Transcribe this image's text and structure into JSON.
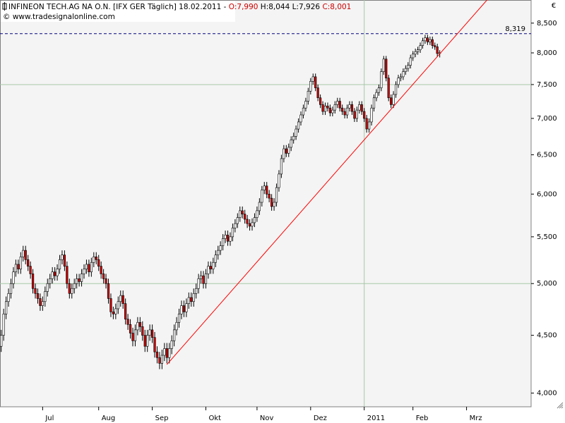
{
  "chart_data": {
    "type": "candlestick",
    "title": "INFINEON TECH.AG NA O.N. [IFX GER  Täglich] 18.02.2011 -",
    "quote": {
      "open": "O:7,990",
      "high": "H:8,044",
      "low": "L:7,926",
      "close": "C:8,001"
    },
    "watermark": "© www.tradesignalonline.com",
    "currency": "€",
    "log_scale": true,
    "up_color": "#ffffff",
    "down_color": "#cc0000",
    "ylim": [
      3.89,
      8.91
    ],
    "yticks": [
      {
        "value": 4,
        "label": "4,000"
      },
      {
        "value": 4.5,
        "label": "4,500"
      },
      {
        "value": 5,
        "label": "5,000"
      },
      {
        "value": 5.5,
        "label": "5,500"
      },
      {
        "value": 6,
        "label": "6,000"
      },
      {
        "value": 6.5,
        "label": "6,500"
      },
      {
        "value": 7,
        "label": "7,000"
      },
      {
        "value": 7.5,
        "label": "7,500"
      },
      {
        "value": 8,
        "label": "8,000"
      },
      {
        "value": 8.5,
        "label": "8,500"
      }
    ],
    "grid_y": [
      5,
      7.5
    ],
    "grid_x": [
      149
    ],
    "hline": {
      "value": 8.319,
      "label": "8,319",
      "color": "#000080"
    },
    "trendline": {
      "x": [
        68,
        199.4
      ],
      "y": [
        4.24,
        8.91
      ],
      "color": "#ff0000"
    },
    "categories": [
      null,
      null,
      null,
      null,
      null,
      null,
      null,
      null,
      null,
      null,
      null,
      null,
      null,
      null,
      null,
      null,
      null,
      "Jul",
      null,
      null,
      null,
      null,
      null,
      null,
      null,
      null,
      null,
      null,
      null,
      null,
      null,
      null,
      null,
      null,
      null,
      null,
      null,
      null,
      null,
      null,
      "Aug",
      null,
      null,
      null,
      null,
      null,
      null,
      null,
      null,
      null,
      null,
      null,
      null,
      null,
      null,
      null,
      null,
      null,
      null,
      null,
      null,
      null,
      "Sep",
      null,
      null,
      null,
      null,
      null,
      null,
      null,
      null,
      null,
      null,
      null,
      null,
      null,
      null,
      null,
      null,
      null,
      null,
      null,
      null,
      null,
      "Okt",
      null,
      null,
      null,
      null,
      null,
      null,
      null,
      null,
      null,
      null,
      null,
      null,
      null,
      null,
      null,
      null,
      null,
      null,
      null,
      null,
      "Nov",
      null,
      null,
      null,
      null,
      null,
      null,
      null,
      null,
      null,
      null,
      null,
      null,
      null,
      null,
      null,
      null,
      null,
      null,
      null,
      null,
      null,
      "Dez",
      null,
      null,
      null,
      null,
      null,
      null,
      null,
      null,
      null,
      null,
      null,
      null,
      null,
      null,
      null,
      null,
      null,
      null,
      null,
      null,
      null,
      "2011",
      null,
      null,
      null,
      null,
      null,
      null,
      null,
      null,
      null,
      null,
      null,
      null,
      null,
      null,
      null,
      null,
      null,
      null,
      null,
      "Feb",
      null,
      null,
      null,
      null,
      null,
      null,
      null,
      null,
      null,
      null,
      null,
      null,
      null,
      null,
      null,
      null,
      null,
      null,
      null,
      null,
      null,
      "Mrz",
      null,
      null,
      null,
      null,
      null,
      null,
      null,
      null,
      null,
      null,
      null,
      null,
      null,
      null,
      null,
      null,
      null,
      null,
      null,
      null,
      null,
      null,
      null,
      null,
      null,
      null
    ],
    "open": [
      4.4,
      4.5,
      4.7,
      4.82,
      4.9,
      5.0,
      5.12,
      5.2,
      5.15,
      5.28,
      5.35,
      5.25,
      5.18,
      5.1,
      4.95,
      4.9,
      4.85,
      4.78,
      4.82,
      4.92,
      5.0,
      5.05,
      5.12,
      5.08,
      5.15,
      5.25,
      5.3,
      5.18,
      5.0,
      4.9,
      4.95,
      5.0,
      5.05,
      5.02,
      5.1,
      5.15,
      5.2,
      5.12,
      5.22,
      5.28,
      5.25,
      5.18,
      5.1,
      5.05,
      5.0,
      4.85,
      4.72,
      4.7,
      4.75,
      4.82,
      4.88,
      4.8,
      4.65,
      4.6,
      4.52,
      4.45,
      4.55,
      4.62,
      4.58,
      4.5,
      4.4,
      4.5,
      4.55,
      4.48,
      4.35,
      4.3,
      4.25,
      4.32,
      4.38,
      4.3,
      4.38,
      4.45,
      4.55,
      4.62,
      4.7,
      4.78,
      4.72,
      4.8,
      4.86,
      4.82,
      4.9,
      4.95,
      5.05,
      5.08,
      5.0,
      5.1,
      5.18,
      5.15,
      5.22,
      5.3,
      5.35,
      5.4,
      5.48,
      5.52,
      5.45,
      5.5,
      5.6,
      5.65,
      5.72,
      5.8,
      5.76,
      5.7,
      5.65,
      5.62,
      5.66,
      5.72,
      5.8,
      5.9,
      6.05,
      6.1,
      6.0,
      5.95,
      5.85,
      5.9,
      6.08,
      6.25,
      6.45,
      6.58,
      6.52,
      6.6,
      6.7,
      6.75,
      6.85,
      6.95,
      7.05,
      7.15,
      7.25,
      7.4,
      7.55,
      7.62,
      7.45,
      7.3,
      7.2,
      7.1,
      7.18,
      7.15,
      7.08,
      7.12,
      7.2,
      7.25,
      7.15,
      7.1,
      7.05,
      7.15,
      7.2,
      7.1,
      7.0,
      7.12,
      7.2,
      7.1,
      7.0,
      6.85,
      6.95,
      7.15,
      7.3,
      7.38,
      7.45,
      7.7,
      7.9,
      7.6,
      7.3,
      7.2,
      7.35,
      7.5,
      7.6,
      7.62,
      7.7,
      7.75,
      7.8,
      7.92,
      7.98,
      8.02,
      8.05,
      8.12,
      8.2,
      8.25,
      8.18,
      8.22,
      8.12,
      8.1,
      7.99,
      null,
      null,
      null,
      null,
      null,
      null,
      null,
      null,
      null,
      null,
      null,
      null,
      null,
      null,
      null,
      null,
      null,
      null,
      null,
      null,
      null,
      null,
      null,
      null,
      null,
      null,
      null,
      null,
      null,
      null,
      null,
      null,
      null,
      null,
      null,
      null,
      null
    ],
    "high": [
      4.55,
      4.75,
      4.87,
      4.95,
      5.05,
      5.17,
      5.25,
      5.25,
      5.33,
      5.4,
      5.4,
      5.3,
      5.23,
      5.15,
      5.0,
      4.95,
      4.9,
      4.87,
      4.97,
      5.05,
      5.1,
      5.17,
      5.17,
      5.2,
      5.3,
      5.35,
      5.35,
      5.23,
      5.05,
      5.0,
      5.05,
      5.1,
      5.1,
      5.15,
      5.2,
      5.25,
      5.25,
      5.27,
      5.33,
      5.33,
      5.3,
      5.23,
      5.15,
      5.1,
      5.05,
      4.9,
      4.77,
      4.8,
      4.87,
      4.93,
      4.93,
      4.85,
      4.7,
      4.65,
      4.57,
      4.6,
      4.67,
      4.67,
      4.63,
      4.55,
      4.55,
      4.6,
      4.6,
      4.53,
      4.4,
      4.35,
      4.37,
      4.43,
      4.43,
      4.43,
      4.5,
      4.6,
      4.67,
      4.75,
      4.83,
      4.83,
      4.85,
      4.91,
      4.91,
      4.95,
      5.0,
      5.1,
      5.13,
      5.13,
      5.15,
      5.23,
      5.23,
      5.27,
      5.35,
      5.4,
      5.45,
      5.53,
      5.57,
      5.57,
      5.55,
      5.65,
      5.7,
      5.77,
      5.85,
      5.85,
      5.81,
      5.75,
      5.7,
      5.71,
      5.77,
      5.85,
      5.95,
      6.1,
      6.15,
      6.15,
      6.05,
      6.0,
      5.95,
      6.13,
      6.3,
      6.5,
      6.63,
      6.63,
      6.65,
      6.75,
      6.8,
      6.9,
      7.0,
      7.1,
      7.2,
      7.3,
      7.45,
      7.6,
      7.67,
      7.67,
      7.5,
      7.35,
      7.25,
      7.23,
      7.23,
      7.2,
      7.17,
      7.25,
      7.3,
      7.3,
      7.2,
      7.15,
      7.2,
      7.25,
      7.25,
      7.15,
      7.17,
      7.25,
      7.25,
      7.15,
      7.05,
      7.0,
      7.2,
      7.35,
      7.43,
      7.5,
      7.75,
      7.95,
      7.95,
      7.65,
      7.35,
      7.4,
      7.55,
      7.65,
      7.67,
      7.75,
      7.8,
      7.85,
      7.97,
      8.03,
      8.07,
      8.1,
      8.17,
      8.25,
      8.3,
      8.3,
      8.27,
      8.27,
      8.17,
      8.15,
      8.044,
      null,
      null,
      null,
      null,
      null,
      null,
      null,
      null,
      null,
      null,
      null,
      null,
      null,
      null,
      null,
      null,
      null,
      null,
      null,
      null,
      null,
      null,
      null,
      null,
      null,
      null,
      null,
      null,
      null,
      null,
      null,
      null,
      null,
      null,
      null,
      null,
      null
    ],
    "low": [
      4.35,
      4.45,
      4.65,
      4.77,
      4.85,
      4.95,
      5.07,
      5.1,
      5.1,
      5.23,
      5.2,
      5.13,
      5.05,
      4.9,
      4.85,
      4.8,
      4.73,
      4.73,
      4.77,
      4.87,
      4.95,
      5.0,
      5.03,
      5.03,
      5.1,
      5.2,
      5.13,
      4.95,
      4.85,
      4.85,
      4.9,
      4.95,
      4.97,
      4.97,
      5.05,
      5.1,
      5.07,
      5.07,
      5.17,
      5.2,
      5.13,
      5.05,
      5.0,
      4.95,
      4.8,
      4.67,
      4.65,
      4.65,
      4.7,
      4.77,
      4.75,
      4.6,
      4.55,
      4.47,
      4.4,
      4.4,
      4.5,
      4.53,
      4.45,
      4.35,
      4.35,
      4.45,
      4.43,
      4.3,
      4.25,
      4.2,
      4.2,
      4.27,
      4.25,
      4.25,
      4.33,
      4.4,
      4.5,
      4.57,
      4.65,
      4.67,
      4.67,
      4.75,
      4.77,
      4.77,
      4.85,
      4.9,
      5.0,
      4.95,
      4.95,
      5.05,
      5.1,
      5.1,
      5.17,
      5.25,
      5.3,
      5.35,
      5.43,
      5.4,
      5.4,
      5.45,
      5.55,
      5.6,
      5.67,
      5.71,
      5.65,
      5.6,
      5.57,
      5.57,
      5.61,
      5.67,
      5.75,
      5.85,
      6.0,
      5.95,
      5.9,
      5.8,
      5.8,
      5.85,
      6.03,
      6.2,
      6.4,
      6.47,
      6.47,
      6.55,
      6.65,
      6.7,
      6.8,
      6.9,
      7.0,
      7.1,
      7.2,
      7.35,
      7.5,
      7.4,
      7.25,
      7.15,
      7.05,
      7.05,
      7.1,
      7.03,
      7.03,
      7.07,
      7.15,
      7.1,
      7.05,
      7.0,
      7.0,
      7.1,
      7.05,
      6.95,
      6.95,
      7.07,
      7.05,
      6.95,
      6.8,
      6.8,
      6.9,
      7.1,
      7.25,
      7.33,
      7.4,
      7.65,
      7.55,
      7.25,
      7.15,
      7.15,
      7.3,
      7.45,
      7.55,
      7.57,
      7.65,
      7.7,
      7.75,
      7.87,
      7.93,
      7.97,
      8.0,
      8.07,
      8.15,
      8.13,
      8.13,
      8.07,
      8.05,
      7.94,
      7.926,
      null,
      null,
      null,
      null,
      null,
      null,
      null,
      null,
      null,
      null,
      null,
      null,
      null,
      null,
      null,
      null,
      null,
      null,
      null,
      null,
      null,
      null,
      null,
      null,
      null,
      null,
      null,
      null,
      null,
      null,
      null,
      null,
      null,
      null,
      null,
      null,
      null
    ],
    "close": [
      4.5,
      4.7,
      4.82,
      4.9,
      5.0,
      5.12,
      5.2,
      5.15,
      5.28,
      5.35,
      5.25,
      5.18,
      5.1,
      4.95,
      4.9,
      4.85,
      4.78,
      4.82,
      4.92,
      5.0,
      5.05,
      5.12,
      5.08,
      5.15,
      5.25,
      5.3,
      5.18,
      5.0,
      4.9,
      4.95,
      5.0,
      5.05,
      5.02,
      5.1,
      5.15,
      5.2,
      5.12,
      5.22,
      5.28,
      5.25,
      5.18,
      5.1,
      5.05,
      5.0,
      4.85,
      4.72,
      4.7,
      4.75,
      4.82,
      4.88,
      4.8,
      4.65,
      4.6,
      4.52,
      4.45,
      4.55,
      4.62,
      4.58,
      4.5,
      4.4,
      4.5,
      4.55,
      4.48,
      4.35,
      4.3,
      4.25,
      4.32,
      4.38,
      4.3,
      4.38,
      4.45,
      4.55,
      4.62,
      4.7,
      4.78,
      4.72,
      4.8,
      4.86,
      4.82,
      4.9,
      4.95,
      5.05,
      5.08,
      5.0,
      5.1,
      5.18,
      5.15,
      5.22,
      5.3,
      5.35,
      5.4,
      5.48,
      5.52,
      5.45,
      5.5,
      5.6,
      5.65,
      5.72,
      5.8,
      5.76,
      5.7,
      5.65,
      5.62,
      5.66,
      5.72,
      5.8,
      5.9,
      6.05,
      6.1,
      6.0,
      5.95,
      5.85,
      5.9,
      6.08,
      6.25,
      6.45,
      6.58,
      6.52,
      6.6,
      6.7,
      6.75,
      6.85,
      6.95,
      7.05,
      7.15,
      7.25,
      7.4,
      7.55,
      7.62,
      7.45,
      7.3,
      7.2,
      7.1,
      7.18,
      7.15,
      7.08,
      7.12,
      7.2,
      7.25,
      7.15,
      7.1,
      7.05,
      7.15,
      7.2,
      7.1,
      7.0,
      7.12,
      7.2,
      7.1,
      7.0,
      6.85,
      6.95,
      7.15,
      7.3,
      7.38,
      7.45,
      7.7,
      7.9,
      7.6,
      7.3,
      7.2,
      7.35,
      7.5,
      7.6,
      7.62,
      7.7,
      7.75,
      7.8,
      7.92,
      7.98,
      8.02,
      8.05,
      8.12,
      8.2,
      8.25,
      8.18,
      8.22,
      8.12,
      8.1,
      7.99,
      8.001,
      null,
      null,
      null,
      null,
      null,
      null,
      null,
      null,
      null,
      null,
      null,
      null,
      null,
      null,
      null,
      null,
      null,
      null,
      null,
      null,
      null,
      null,
      null,
      null,
      null,
      null,
      null,
      null,
      null,
      null,
      null,
      null,
      null,
      null,
      null,
      null,
      null
    ]
  }
}
